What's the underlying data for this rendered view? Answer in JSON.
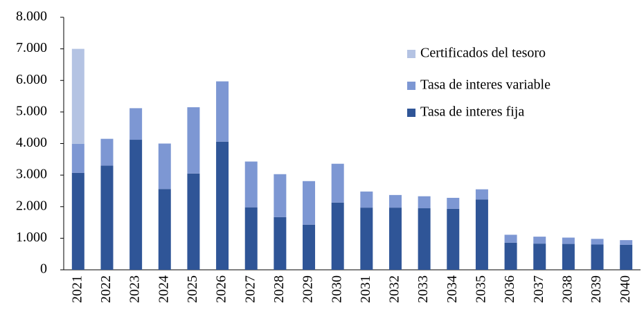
{
  "chart_data": {
    "type": "stacked_bar",
    "categories": [
      "2021",
      "2022",
      "2023",
      "2024",
      "2025",
      "2026",
      "2027",
      "2028",
      "2029",
      "2030",
      "2031",
      "2032",
      "2033",
      "2034",
      "2035",
      "2036",
      "2037",
      "2038",
      "2039",
      "2040"
    ],
    "series": [
      {
        "name": "Tasa de interes fija",
        "color": "#2f5597",
        "values": [
          3070,
          3300,
          4120,
          2560,
          3050,
          4060,
          1980,
          1670,
          1430,
          2130,
          1970,
          1970,
          1950,
          1930,
          2230,
          860,
          830,
          820,
          800,
          790
        ]
      },
      {
        "name": "Tasa de interes variable",
        "color": "#7d97d3",
        "values": [
          920,
          850,
          1000,
          1440,
          2100,
          1910,
          1450,
          1360,
          1380,
          1230,
          510,
          400,
          380,
          350,
          320,
          250,
          220,
          200,
          180,
          150
        ]
      },
      {
        "name": "Certificados del tesoro",
        "color": "#b4c3e3",
        "values": [
          3010,
          0,
          0,
          0,
          0,
          0,
          0,
          0,
          0,
          0,
          0,
          0,
          0,
          0,
          0,
          0,
          0,
          0,
          0,
          0
        ]
      }
    ],
    "ylim": [
      0,
      8000
    ],
    "yticks": [
      0,
      {
        "value": 1000,
        "label": "1.000"
      },
      {
        "value": 2000,
        "label": "2.000"
      },
      {
        "value": 3000,
        "label": "3.000"
      },
      {
        "value": 4000,
        "label": "4.000"
      },
      {
        "value": 5000,
        "label": "5.000"
      },
      {
        "value": 6000,
        "label": "6.000"
      },
      {
        "value": 7000,
        "label": "7.000"
      },
      {
        "value": 8000,
        "label": "8.000"
      }
    ],
    "legend": "upper right"
  }
}
